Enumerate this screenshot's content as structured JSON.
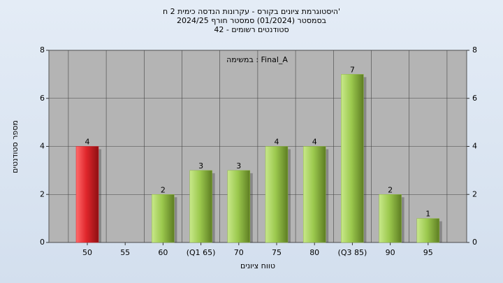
{
  "chart_data": {
    "type": "bar",
    "title": "היסטוגרמת ציונים בקורס - עקרונות הנדסה כימית 2 ח'",
    "subtitle": "בסמסטר (01/2024) סמסטר חורף 2024/25",
    "subtitle2": "סטודנטים רשומים - 42",
    "annotation": "במשימה : Final_A",
    "x_label": "טווח ציונים",
    "y_label": "מספר סטודנטים",
    "categories": [
      "50",
      "55",
      "60",
      "(Q1 65)",
      "70",
      "75",
      "80",
      "(Q3 85)",
      "90",
      "95"
    ],
    "values": [
      4,
      0,
      2,
      3,
      3,
      4,
      4,
      7,
      2,
      1
    ],
    "colors": [
      "#d9272e",
      "#8fb843",
      "#8fb843",
      "#8fb843",
      "#8fb843",
      "#8fb843",
      "#8fb843",
      "#8fb843",
      "#8fb843",
      "#8fb843"
    ],
    "ylim": [
      0,
      8
    ],
    "yticks": [
      0,
      2,
      4,
      6,
      8
    ],
    "y2lim": [
      0,
      8
    ],
    "y2ticks": [
      0,
      2,
      4,
      6,
      8
    ],
    "grid": true
  }
}
